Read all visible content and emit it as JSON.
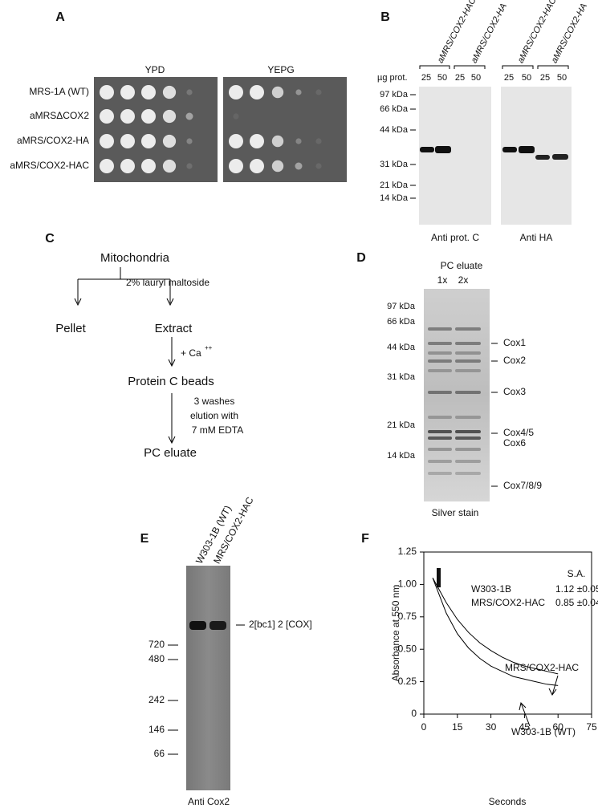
{
  "panel_a": {
    "label": "A",
    "media": [
      "YPD",
      "YEPG"
    ],
    "strains": [
      "MRS-1A (WT)",
      "aMRSΔCOX2",
      "aMRS/COX2-HA",
      "aMRS/COX2-HAC"
    ]
  },
  "panel_b": {
    "label": "B",
    "lane_groups": [
      "aMRS/COX2-HAC",
      "aMRS/COX2-HA",
      "aMRS/COX2-HAC",
      "aMRS/COX2-HA"
    ],
    "amount_label": "µg prot.",
    "amounts": [
      "25",
      "50",
      "25",
      "50",
      "25",
      "50",
      "25",
      "50"
    ],
    "markers": [
      "97 kDa",
      "66 kDa",
      "44 kDa",
      "31 kDa",
      "21 kDa",
      "14 kDa"
    ],
    "blots": [
      "Anti prot. C",
      "Anti HA"
    ]
  },
  "panel_c": {
    "label": "C",
    "nodes": [
      "Mitochondria",
      "Pellet",
      "Extract",
      "Protein C beads",
      "PC eluate"
    ],
    "steps": [
      "2%  lauryl maltoside",
      "+ Ca",
      "++",
      "3 washes",
      "elution with",
      "7 mM EDTA"
    ]
  },
  "panel_d": {
    "label": "D",
    "title": "PC eluate",
    "lanes": [
      "1x",
      "2x"
    ],
    "markers": [
      "97 kDa",
      "66 kDa",
      "44 kDa",
      "31 kDa",
      "21 kDa",
      "14 kDa"
    ],
    "bands": [
      "Cox1",
      "Cox2",
      "Cox3",
      "Cox4/5",
      "Cox6",
      "Cox7/8/9"
    ],
    "caption": "Silver stain"
  },
  "panel_e": {
    "label": "E",
    "lanes": [
      "W303-1B (WT)",
      "MRS/COX2-HAC"
    ],
    "markers": [
      "720",
      "480",
      "242",
      "146",
      "66"
    ],
    "band": "2[bc1] 2 [COX]",
    "caption": "Anti Cox2"
  },
  "chart_data": {
    "type": "line",
    "label": "F",
    "x_label": "Seconds",
    "y_label": "Absorbance at 550 nm",
    "xlim": [
      0,
      75
    ],
    "xticks": [
      0,
      15,
      30,
      45,
      60,
      75
    ],
    "ylim": [
      0,
      1.25
    ],
    "yticks": [
      0,
      0.25,
      {
        "value": 0.5,
        "label": "0.50"
      },
      0.75,
      {
        "value": 1,
        "label": "1.00"
      },
      1.25
    ],
    "x": [
      4,
      10,
      15,
      20,
      25,
      30,
      35,
      40,
      45,
      50,
      55,
      60
    ],
    "series": [
      {
        "name": "MRS/COX2-HAC",
        "color": "#000000",
        "values": [
          1.05,
          0.86,
          0.73,
          0.63,
          0.55,
          0.49,
          0.44,
          0.4,
          0.37,
          0.35,
          0.33,
          0.31
        ]
      },
      {
        "name": "W303-1B (WT)",
        "color": "#000000",
        "values": [
          1.05,
          0.78,
          0.62,
          0.51,
          0.43,
          0.37,
          0.33,
          0.29,
          0.27,
          0.25,
          0.23,
          0.22
        ]
      }
    ],
    "sa_header": "S.A.",
    "sa_rows": [
      {
        "name": "W303-1B",
        "value": "1.12 ±0.05"
      },
      {
        "name": "MRS/COX2-HAC",
        "value": "0.85 ±0.04"
      }
    ]
  }
}
